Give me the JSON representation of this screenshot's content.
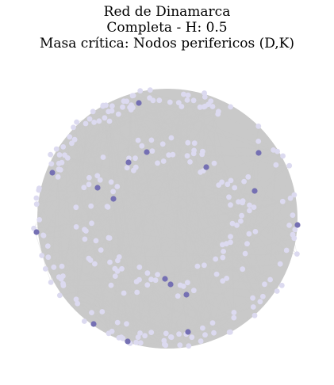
{
  "title_lines": [
    "Red de Dinamarca",
    "Completa - H: 0.5",
    "Masa crítica: Nodos perifericos (D,K)"
  ],
  "colors": {
    "edge": "#c9c9c9",
    "node_regular": "#dcdaf0",
    "node_critical": "#7570b3",
    "background": "#ffffff"
  },
  "legend": "none"
}
